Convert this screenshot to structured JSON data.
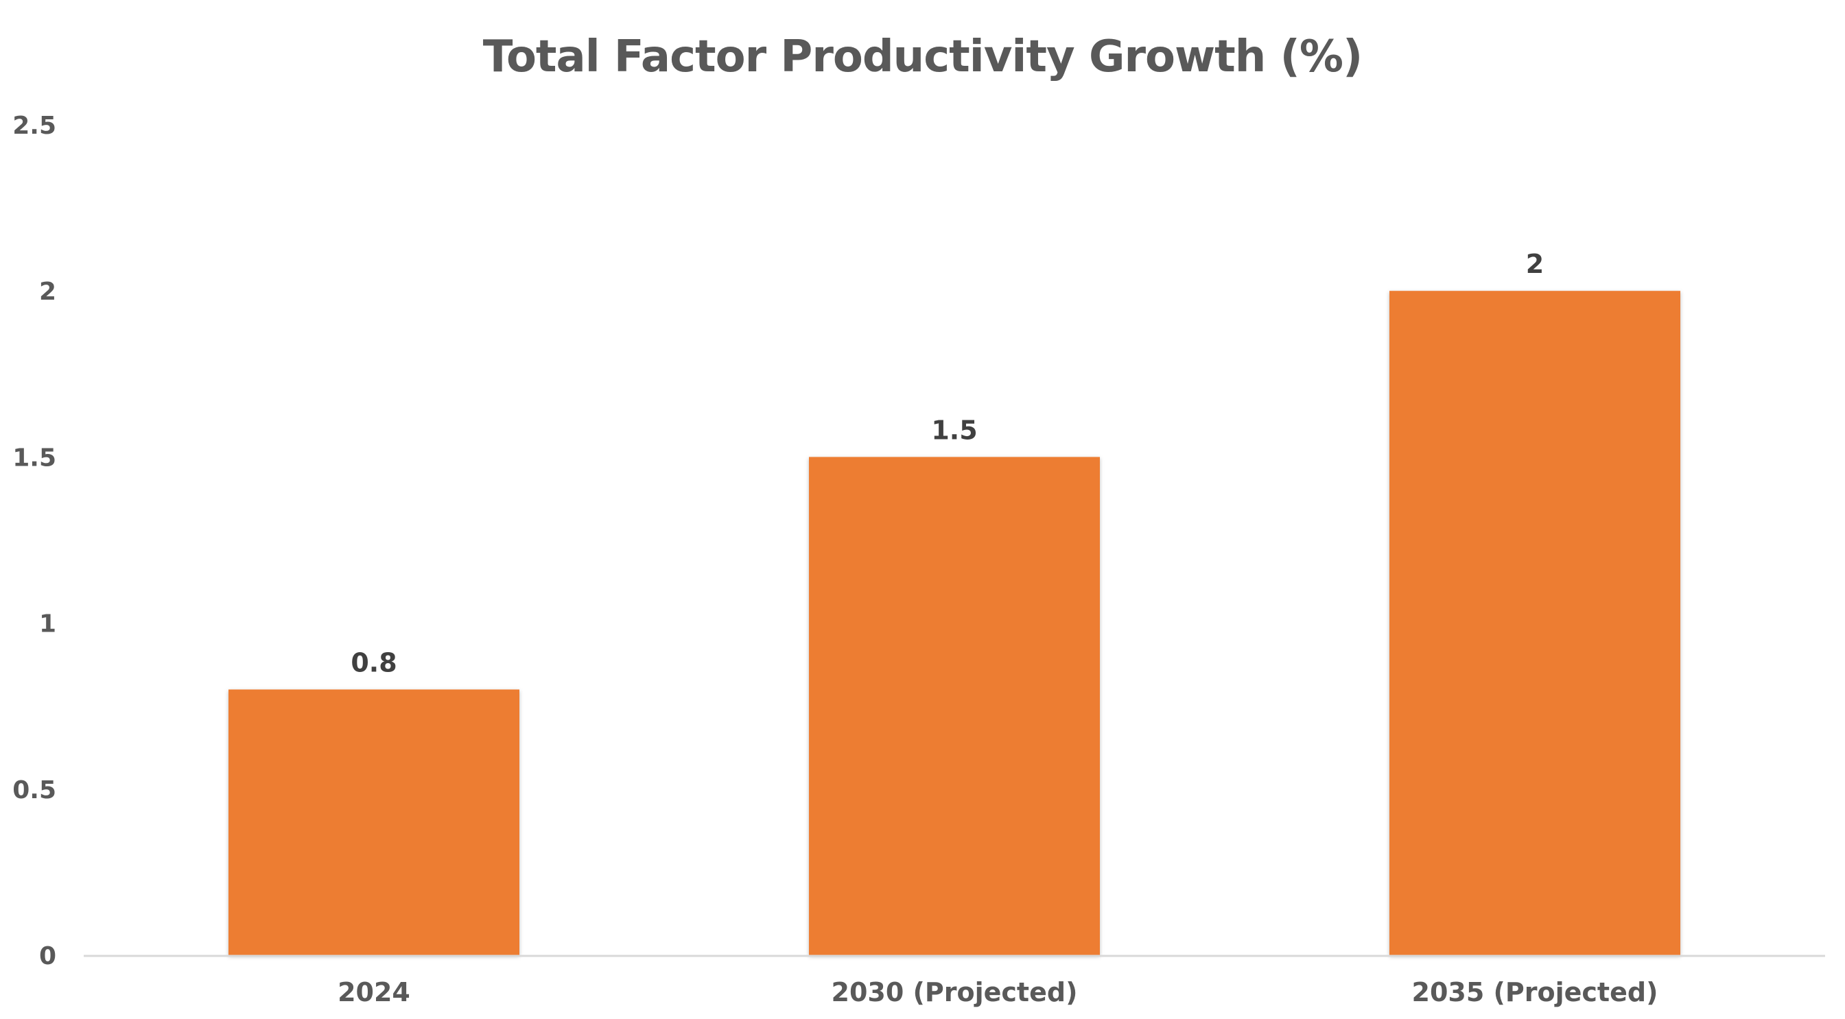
{
  "chart_data": {
    "type": "bar",
    "title": "Total Factor Productivity Growth (%)",
    "categories": [
      "2024",
      "2030 (Projected)",
      "2035 (Projected)"
    ],
    "values": [
      0.8,
      1.5,
      2
    ],
    "data_labels": [
      "0.8",
      "1.5",
      "2"
    ],
    "ylim": [
      0,
      2.5
    ],
    "yticks": [
      0,
      0.5,
      1,
      1.5,
      2,
      2.5
    ],
    "ytick_labels": [
      "0",
      "0.5",
      "1",
      "1.5",
      "2",
      "2.5"
    ],
    "xlabel": "",
    "ylabel": "",
    "grid": false,
    "legend": "none",
    "colors": {
      "bar": "#ED7D31",
      "axis_line": "#D9D9D9",
      "tick_text": "#595959",
      "label_text": "#404040",
      "title_text": "#595959"
    }
  }
}
